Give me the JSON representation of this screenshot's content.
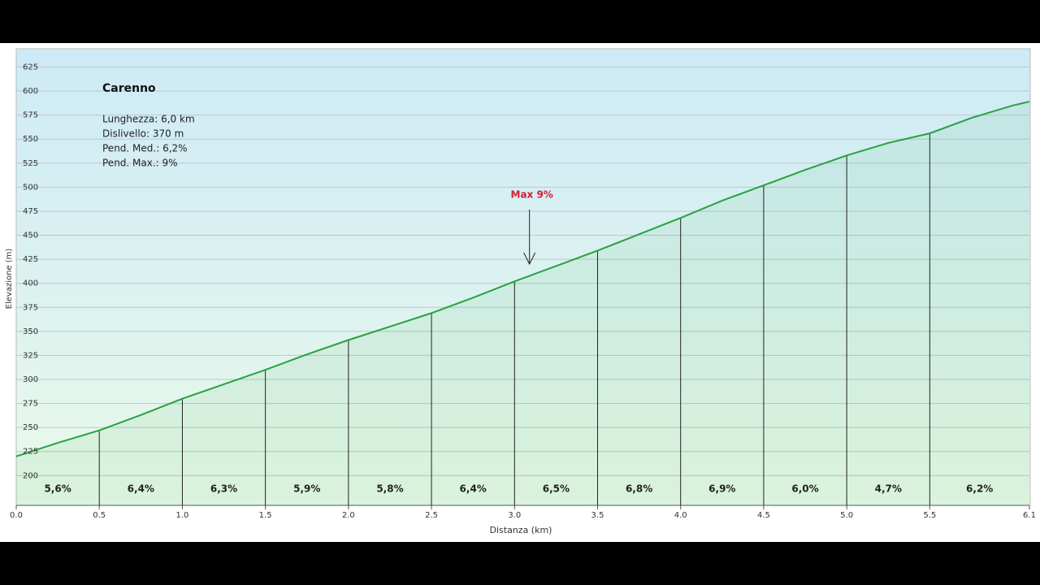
{
  "chart_data": {
    "type": "area",
    "title": "Carenno",
    "info": [
      "Lunghezza: 6,0 km",
      "Dislivello: 370 m",
      "Pend. Med.: 6,2%",
      "Pend. Max.: 9%"
    ],
    "x_label": "Distanza  (km)",
    "y_label": "Elevazione (m)",
    "x": [
      0,
      0.25,
      0.5,
      0.75,
      1.0,
      1.25,
      1.5,
      1.75,
      2.0,
      2.25,
      2.5,
      2.75,
      3.0,
      3.25,
      3.5,
      3.75,
      4.0,
      4.25,
      4.5,
      4.75,
      5.0,
      5.25,
      5.5,
      5.75,
      6.0,
      6.1
    ],
    "series": [
      {
        "name": "Elevazione",
        "color": "#2aa040",
        "values": [
          220,
          234,
          247,
          263,
          280,
          295,
          310,
          326,
          341,
          355,
          369,
          385,
          402,
          418,
          434,
          451,
          468,
          486,
          502,
          518,
          533,
          546,
          556,
          572,
          585,
          589
        ]
      }
    ],
    "segments": {
      "values": [
        5.6,
        6.4,
        6.3,
        5.9,
        5.8,
        6.4,
        6.5,
        6.8,
        6.9,
        6.0,
        4.7,
        6.2
      ],
      "value_labels": [
        "5,6%",
        "6,4%",
        "6,3%",
        "5,9%",
        "5,8%",
        "6,4%",
        "6,5%",
        "6,8%",
        "6,9%",
        "6,0%",
        "4,7%",
        "6,2%"
      ]
    },
    "annotation": {
      "text": "Max 9%",
      "x": 3.09,
      "y": 420,
      "color": "#d02030"
    },
    "xlim": [
      0,
      6.1
    ],
    "ylim": [
      169,
      644
    ],
    "xticks": [
      {
        "value": 0,
        "label": "0.0"
      },
      0.5,
      {
        "value": 1,
        "label": "1.0"
      },
      1.5,
      {
        "value": 2,
        "label": "2.0"
      },
      2.5,
      {
        "value": 3,
        "label": "3.0"
      },
      3.5,
      {
        "value": 4,
        "label": "4.0"
      },
      4.5,
      {
        "value": 5,
        "label": "5.0"
      },
      5.5,
      6.1
    ],
    "yticks": [
      200,
      225,
      250,
      275,
      300,
      325,
      350,
      375,
      400,
      425,
      450,
      475,
      500,
      525,
      550,
      575,
      600,
      625
    ],
    "grid": true
  }
}
